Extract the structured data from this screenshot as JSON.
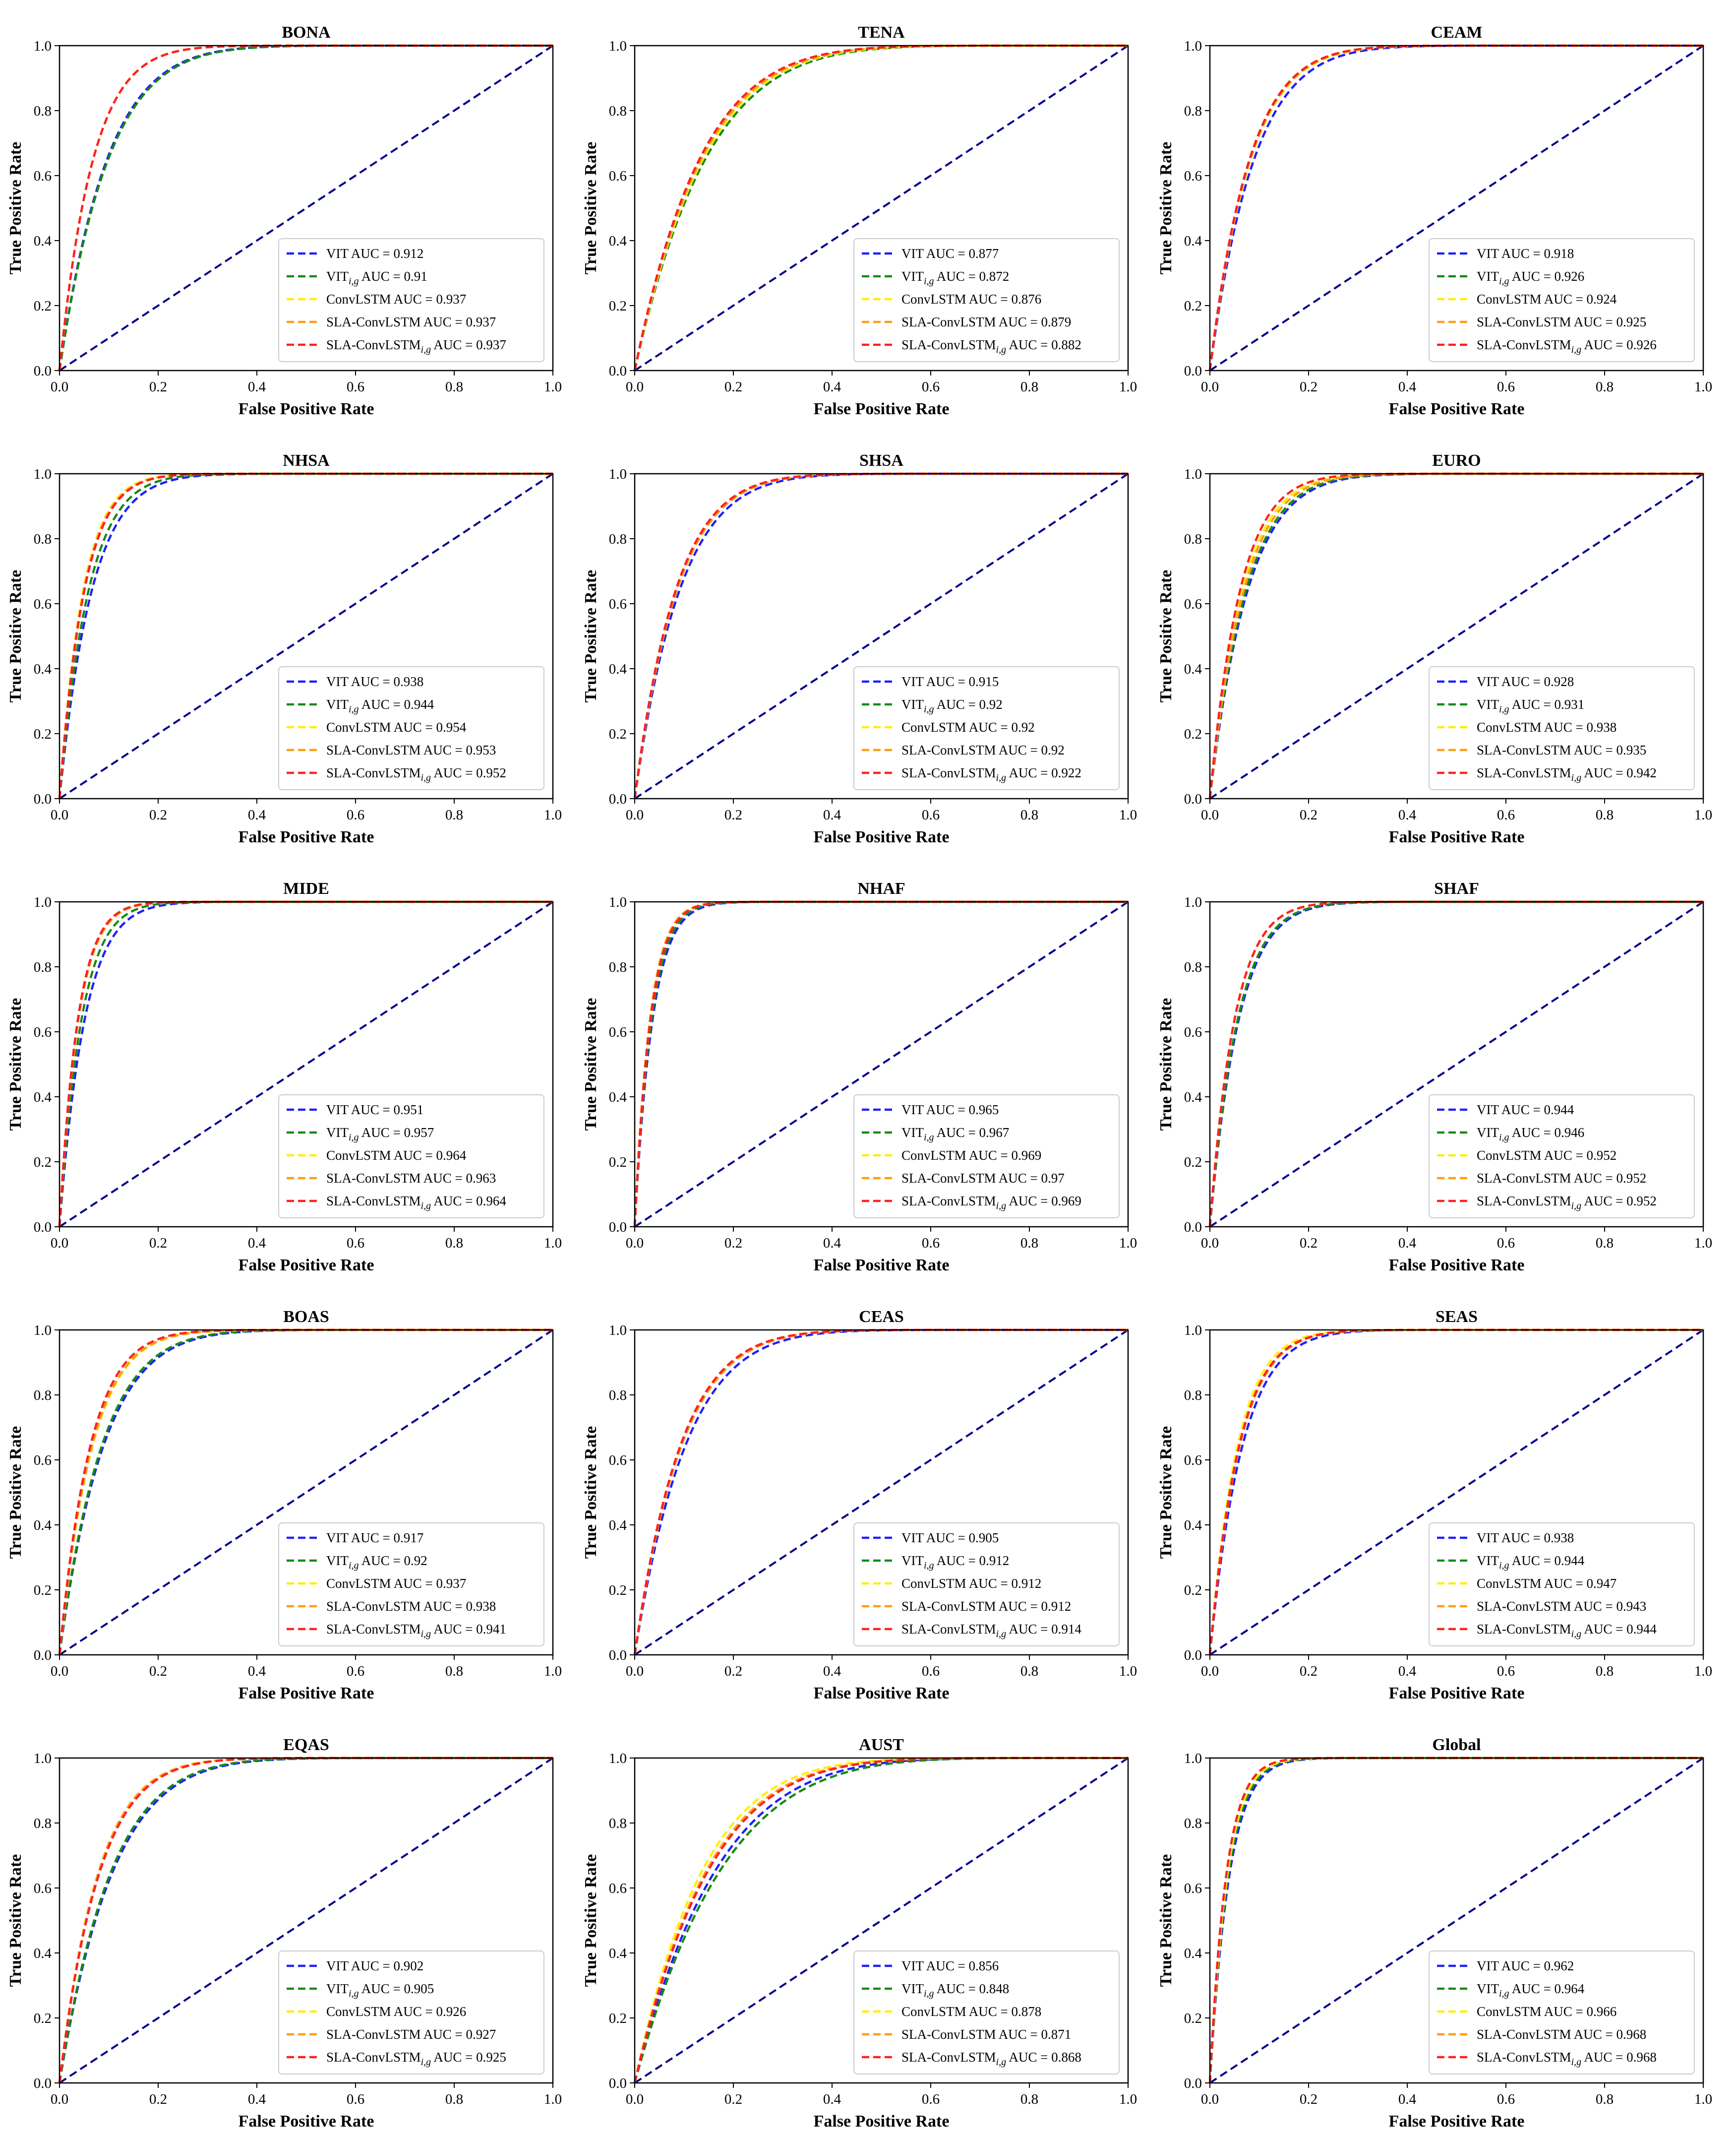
{
  "figure": {
    "xlabel": "False Positive Rate",
    "ylabel": "True Positive Rate",
    "xticks": [
      "0.0",
      "0.2",
      "0.4",
      "0.6",
      "0.8",
      "1.0"
    ],
    "yticks": [
      "0.0",
      "0.2",
      "0.4",
      "0.6",
      "0.8",
      "1.0"
    ]
  },
  "series_styles": [
    {
      "key": "vit",
      "color": "#1f1fff",
      "label_main": "VIT",
      "label_sub": ""
    },
    {
      "key": "vitig",
      "color": "#168a16",
      "label_main": "VIT",
      "label_sub": "i,g"
    },
    {
      "key": "convlstm",
      "color": "#ffee00",
      "label_main": "ConvLSTM",
      "label_sub": ""
    },
    {
      "key": "sla",
      "color": "#ff9d14",
      "label_main": "SLA-ConvLSTM",
      "label_sub": ""
    },
    {
      "key": "slaig",
      "color": "#ff2020",
      "label_main": "SLA-ConvLSTM",
      "label_sub": "i,g"
    }
  ],
  "diagonal_color": "#00008b",
  "auc_prefix": "AUC = ",
  "chart_data": [
    {
      "type": "line",
      "title": "BONA",
      "xlabel": "False Positive Rate",
      "ylabel": "True Positive Rate",
      "xlim": [
        0,
        1
      ],
      "ylim": [
        0,
        1
      ],
      "series": [
        {
          "name": "VIT",
          "auc": "0.912"
        },
        {
          "name": "VITi,g",
          "auc": "0.91"
        },
        {
          "name": "ConvLSTM",
          "auc": "0.937"
        },
        {
          "name": "SLA-ConvLSTM",
          "auc": "0.937"
        },
        {
          "name": "SLA-ConvLSTMi,g",
          "auc": "0.937"
        }
      ]
    },
    {
      "type": "line",
      "title": "TENA",
      "xlabel": "False Positive Rate",
      "ylabel": "True Positive Rate",
      "xlim": [
        0,
        1
      ],
      "ylim": [
        0,
        1
      ],
      "series": [
        {
          "name": "VIT",
          "auc": "0.877"
        },
        {
          "name": "VITi,g",
          "auc": "0.872"
        },
        {
          "name": "ConvLSTM",
          "auc": "0.876"
        },
        {
          "name": "SLA-ConvLSTM",
          "auc": "0.879"
        },
        {
          "name": "SLA-ConvLSTMi,g",
          "auc": "0.882"
        }
      ]
    },
    {
      "type": "line",
      "title": "CEAM",
      "xlabel": "False Positive Rate",
      "ylabel": "True Positive Rate",
      "xlim": [
        0,
        1
      ],
      "ylim": [
        0,
        1
      ],
      "series": [
        {
          "name": "VIT",
          "auc": "0.918"
        },
        {
          "name": "VITi,g",
          "auc": "0.926"
        },
        {
          "name": "ConvLSTM",
          "auc": "0.924"
        },
        {
          "name": "SLA-ConvLSTM",
          "auc": "0.925"
        },
        {
          "name": "SLA-ConvLSTMi,g",
          "auc": "0.926"
        }
      ]
    },
    {
      "type": "line",
      "title": "NHSA",
      "xlabel": "False Positive Rate",
      "ylabel": "True Positive Rate",
      "xlim": [
        0,
        1
      ],
      "ylim": [
        0,
        1
      ],
      "series": [
        {
          "name": "VIT",
          "auc": "0.938"
        },
        {
          "name": "VITi,g",
          "auc": "0.944"
        },
        {
          "name": "ConvLSTM",
          "auc": "0.954"
        },
        {
          "name": "SLA-ConvLSTM",
          "auc": "0.953"
        },
        {
          "name": "SLA-ConvLSTMi,g",
          "auc": "0.952"
        }
      ]
    },
    {
      "type": "line",
      "title": "SHSA",
      "xlabel": "False Positive Rate",
      "ylabel": "True Positive Rate",
      "xlim": [
        0,
        1
      ],
      "ylim": [
        0,
        1
      ],
      "series": [
        {
          "name": "VIT",
          "auc": "0.915"
        },
        {
          "name": "VITi,g",
          "auc": "0.92"
        },
        {
          "name": "ConvLSTM",
          "auc": "0.92"
        },
        {
          "name": "SLA-ConvLSTM",
          "auc": "0.92"
        },
        {
          "name": "SLA-ConvLSTMi,g",
          "auc": "0.922"
        }
      ]
    },
    {
      "type": "line",
      "title": "EURO",
      "xlabel": "False Positive Rate",
      "ylabel": "True Positive Rate",
      "xlim": [
        0,
        1
      ],
      "ylim": [
        0,
        1
      ],
      "series": [
        {
          "name": "VIT",
          "auc": "0.928"
        },
        {
          "name": "VITi,g",
          "auc": "0.931"
        },
        {
          "name": "ConvLSTM",
          "auc": "0.938"
        },
        {
          "name": "SLA-ConvLSTM",
          "auc": "0.935"
        },
        {
          "name": "SLA-ConvLSTMi,g",
          "auc": "0.942"
        }
      ]
    },
    {
      "type": "line",
      "title": "MIDE",
      "xlabel": "False Positive Rate",
      "ylabel": "True Positive Rate",
      "xlim": [
        0,
        1
      ],
      "ylim": [
        0,
        1
      ],
      "series": [
        {
          "name": "VIT",
          "auc": "0.951"
        },
        {
          "name": "VITi,g",
          "auc": "0.957"
        },
        {
          "name": "ConvLSTM",
          "auc": "0.964"
        },
        {
          "name": "SLA-ConvLSTM",
          "auc": "0.963"
        },
        {
          "name": "SLA-ConvLSTMi,g",
          "auc": "0.964"
        }
      ]
    },
    {
      "type": "line",
      "title": "NHAF",
      "xlabel": "False Positive Rate",
      "ylabel": "True Positive Rate",
      "xlim": [
        0,
        1
      ],
      "ylim": [
        0,
        1
      ],
      "series": [
        {
          "name": "VIT",
          "auc": "0.965"
        },
        {
          "name": "VITi,g",
          "auc": "0.967"
        },
        {
          "name": "ConvLSTM",
          "auc": "0.969"
        },
        {
          "name": "SLA-ConvLSTM",
          "auc": "0.97"
        },
        {
          "name": "SLA-ConvLSTMi,g",
          "auc": "0.969"
        }
      ]
    },
    {
      "type": "line",
      "title": "SHAF",
      "xlabel": "False Positive Rate",
      "ylabel": "True Positive Rate",
      "xlim": [
        0,
        1
      ],
      "ylim": [
        0,
        1
      ],
      "series": [
        {
          "name": "VIT",
          "auc": "0.944"
        },
        {
          "name": "VITi,g",
          "auc": "0.946"
        },
        {
          "name": "ConvLSTM",
          "auc": "0.952"
        },
        {
          "name": "SLA-ConvLSTM",
          "auc": "0.952"
        },
        {
          "name": "SLA-ConvLSTMi,g",
          "auc": "0.952"
        }
      ]
    },
    {
      "type": "line",
      "title": "BOAS",
      "xlabel": "False Positive Rate",
      "ylabel": "True Positive Rate",
      "xlim": [
        0,
        1
      ],
      "ylim": [
        0,
        1
      ],
      "series": [
        {
          "name": "VIT",
          "auc": "0.917"
        },
        {
          "name": "VITi,g",
          "auc": "0.92"
        },
        {
          "name": "ConvLSTM",
          "auc": "0.937"
        },
        {
          "name": "SLA-ConvLSTM",
          "auc": "0.938"
        },
        {
          "name": "SLA-ConvLSTMi,g",
          "auc": "0.941"
        }
      ]
    },
    {
      "type": "line",
      "title": "CEAS",
      "xlabel": "False Positive Rate",
      "ylabel": "True Positive Rate",
      "xlim": [
        0,
        1
      ],
      "ylim": [
        0,
        1
      ],
      "series": [
        {
          "name": "VIT",
          "auc": "0.905"
        },
        {
          "name": "VITi,g",
          "auc": "0.912"
        },
        {
          "name": "ConvLSTM",
          "auc": "0.912"
        },
        {
          "name": "SLA-ConvLSTM",
          "auc": "0.912"
        },
        {
          "name": "SLA-ConvLSTMi,g",
          "auc": "0.914"
        }
      ]
    },
    {
      "type": "line",
      "title": "SEAS",
      "xlabel": "False Positive Rate",
      "ylabel": "True Positive Rate",
      "xlim": [
        0,
        1
      ],
      "ylim": [
        0,
        1
      ],
      "series": [
        {
          "name": "VIT",
          "auc": "0.938"
        },
        {
          "name": "VITi,g",
          "auc": "0.944"
        },
        {
          "name": "ConvLSTM",
          "auc": "0.947"
        },
        {
          "name": "SLA-ConvLSTM",
          "auc": "0.943"
        },
        {
          "name": "SLA-ConvLSTMi,g",
          "auc": "0.944"
        }
      ]
    },
    {
      "type": "line",
      "title": "EQAS",
      "xlabel": "False Positive Rate",
      "ylabel": "True Positive Rate",
      "xlim": [
        0,
        1
      ],
      "ylim": [
        0,
        1
      ],
      "series": [
        {
          "name": "VIT",
          "auc": "0.902"
        },
        {
          "name": "VITi,g",
          "auc": "0.905"
        },
        {
          "name": "ConvLSTM",
          "auc": "0.926"
        },
        {
          "name": "SLA-ConvLSTM",
          "auc": "0.927"
        },
        {
          "name": "SLA-ConvLSTMi,g",
          "auc": "0.925"
        }
      ]
    },
    {
      "type": "line",
      "title": "AUST",
      "xlabel": "False Positive Rate",
      "ylabel": "True Positive Rate",
      "xlim": [
        0,
        1
      ],
      "ylim": [
        0,
        1
      ],
      "series": [
        {
          "name": "VIT",
          "auc": "0.856"
        },
        {
          "name": "VITi,g",
          "auc": "0.848"
        },
        {
          "name": "ConvLSTM",
          "auc": "0.878"
        },
        {
          "name": "SLA-ConvLSTM",
          "auc": "0.871"
        },
        {
          "name": "SLA-ConvLSTMi,g",
          "auc": "0.868"
        }
      ]
    },
    {
      "type": "line",
      "title": "Global",
      "xlabel": "False Positive Rate",
      "ylabel": "True Positive Rate",
      "xlim": [
        0,
        1
      ],
      "ylim": [
        0,
        1
      ],
      "series": [
        {
          "name": "VIT",
          "auc": "0.962"
        },
        {
          "name": "VITi,g",
          "auc": "0.964"
        },
        {
          "name": "ConvLSTM",
          "auc": "0.966"
        },
        {
          "name": "SLA-ConvLSTM",
          "auc": "0.968"
        },
        {
          "name": "SLA-ConvLSTMi,g",
          "auc": "0.968"
        }
      ]
    }
  ]
}
